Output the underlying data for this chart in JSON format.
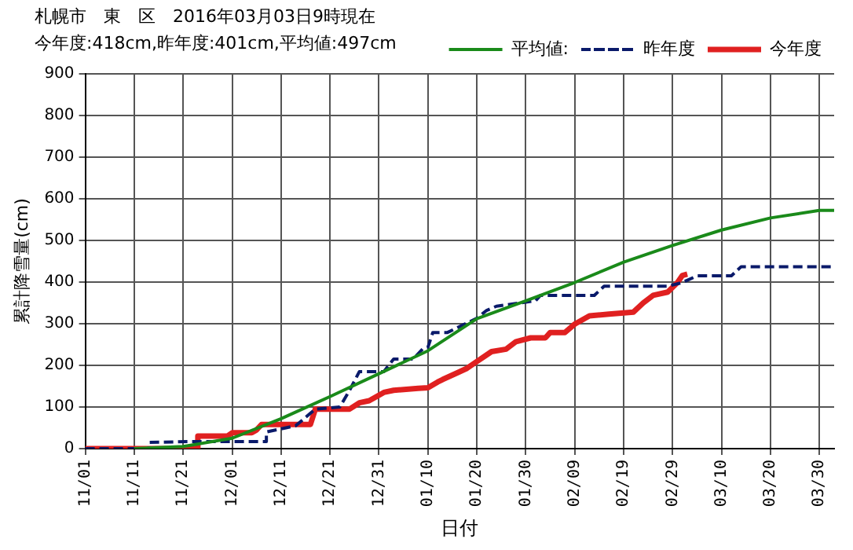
{
  "chart_data": {
    "type": "line",
    "title": "札幌市　東　区　2016年03月03日9時現在",
    "subtitle": "今年度:418cm,昨年度:401cm,平均値:497cm",
    "xlabel": "日付",
    "ylabel": "累計降雪量(cm)",
    "xlim": [
      "2015-11-01",
      "2016-04-02"
    ],
    "xticks": [
      {
        "value": "2015-11-01",
        "label": "11/01"
      },
      {
        "value": "2015-11-11",
        "label": "11/11"
      },
      {
        "value": "2015-11-21",
        "label": "11/21"
      },
      {
        "value": "2015-12-01",
        "label": "12/01"
      },
      {
        "value": "2015-12-11",
        "label": "12/11"
      },
      {
        "value": "2015-12-21",
        "label": "12/21"
      },
      {
        "value": "2015-12-31",
        "label": "12/31"
      },
      {
        "value": "2016-01-10",
        "label": "01/10"
      },
      {
        "value": "2016-01-20",
        "label": "01/20"
      },
      {
        "value": "2016-01-30",
        "label": "01/30"
      },
      {
        "value": "2016-02-09",
        "label": "02/09"
      },
      {
        "value": "2016-02-19",
        "label": "02/19"
      },
      {
        "value": "2016-02-29",
        "label": "02/29"
      },
      {
        "value": "2016-03-10",
        "label": "03/10"
      },
      {
        "value": "2016-03-20",
        "label": "03/20"
      },
      {
        "value": "2016-03-30",
        "label": "03/30"
      }
    ],
    "ylim": [
      0,
      900
    ],
    "yticks": [
      0,
      100,
      200,
      300,
      400,
      500,
      600,
      700,
      800,
      900
    ],
    "grid": true,
    "legend": "top right",
    "marker": "none",
    "series": [
      {
        "name": "平均値:",
        "color": "#1a8a1a",
        "line_style": "solid",
        "x": [
          "2015-11-11",
          "2015-11-21",
          "2015-12-01",
          "2015-12-11",
          "2015-12-21",
          "2015-12-31",
          "2016-01-10",
          "2016-01-20",
          "2016-01-30",
          "2016-02-09",
          "2016-02-19",
          "2016-02-29",
          "2016-03-10",
          "2016-03-20",
          "2016-03-30",
          "2016-04-02"
        ],
        "values": [
          0,
          5,
          25,
          72,
          125,
          180,
          235,
          312,
          355,
          399,
          448,
          488,
          525,
          554,
          572,
          572
        ]
      },
      {
        "name": "昨年度",
        "color": "#0a1a6a",
        "line_style": "dashed",
        "x": [
          "2015-11-01",
          "2015-11-14",
          "2015-11-14",
          "2015-11-22",
          "2015-12-08",
          "2015-12-08",
          "2015-12-12",
          "2015-12-14",
          "2015-12-18",
          "2015-12-23",
          "2015-12-25",
          "2015-12-27",
          "2016-01-01",
          "2016-01-03",
          "2016-01-07",
          "2016-01-09",
          "2016-01-10",
          "2016-01-11",
          "2016-01-14",
          "2016-01-20",
          "2016-01-22",
          "2016-01-24",
          "2016-02-01",
          "2016-02-02",
          "2016-02-13",
          "2016-02-15",
          "2016-02-28",
          "2016-03-02",
          "2016-03-05",
          "2016-03-12",
          "2016-03-14",
          "2016-04-02"
        ],
        "values": [
          0,
          0,
          15,
          17,
          17,
          40,
          50,
          55,
          95,
          100,
          140,
          185,
          185,
          215,
          215,
          240,
          243,
          279,
          279,
          313,
          332,
          342,
          355,
          368,
          368,
          390,
          390,
          399,
          415,
          415,
          437,
          437
        ]
      },
      {
        "name": "今年度",
        "color": "#e02020",
        "line_style": "solid",
        "x": [
          "2015-11-01",
          "2015-11-24",
          "2015-11-24",
          "2015-11-30",
          "2015-12-01",
          "2015-12-05",
          "2015-12-06",
          "2015-12-07",
          "2015-12-17",
          "2015-12-18",
          "2015-12-25",
          "2015-12-27",
          "2015-12-29",
          "2016-01-01",
          "2016-01-03",
          "2016-01-08",
          "2016-01-10",
          "2016-01-12",
          "2016-01-13",
          "2016-01-16",
          "2016-01-18",
          "2016-01-20",
          "2016-01-23",
          "2016-01-26",
          "2016-01-28",
          "2016-01-31",
          "2016-02-03",
          "2016-02-04",
          "2016-02-07",
          "2016-02-09",
          "2016-02-12",
          "2016-02-16",
          "2016-02-21",
          "2016-02-23",
          "2016-02-25",
          "2016-02-28",
          "2016-03-01",
          "2016-03-02",
          "2016-03-03"
        ],
        "values": [
          0,
          0,
          30,
          30,
          38,
          38,
          45,
          58,
          58,
          95,
          95,
          110,
          115,
          135,
          140,
          145,
          146,
          160,
          166,
          182,
          193,
          209,
          233,
          239,
          257,
          266,
          266,
          279,
          279,
          299,
          319,
          323,
          328,
          350,
          368,
          376,
          399,
          416,
          419
        ]
      }
    ]
  }
}
